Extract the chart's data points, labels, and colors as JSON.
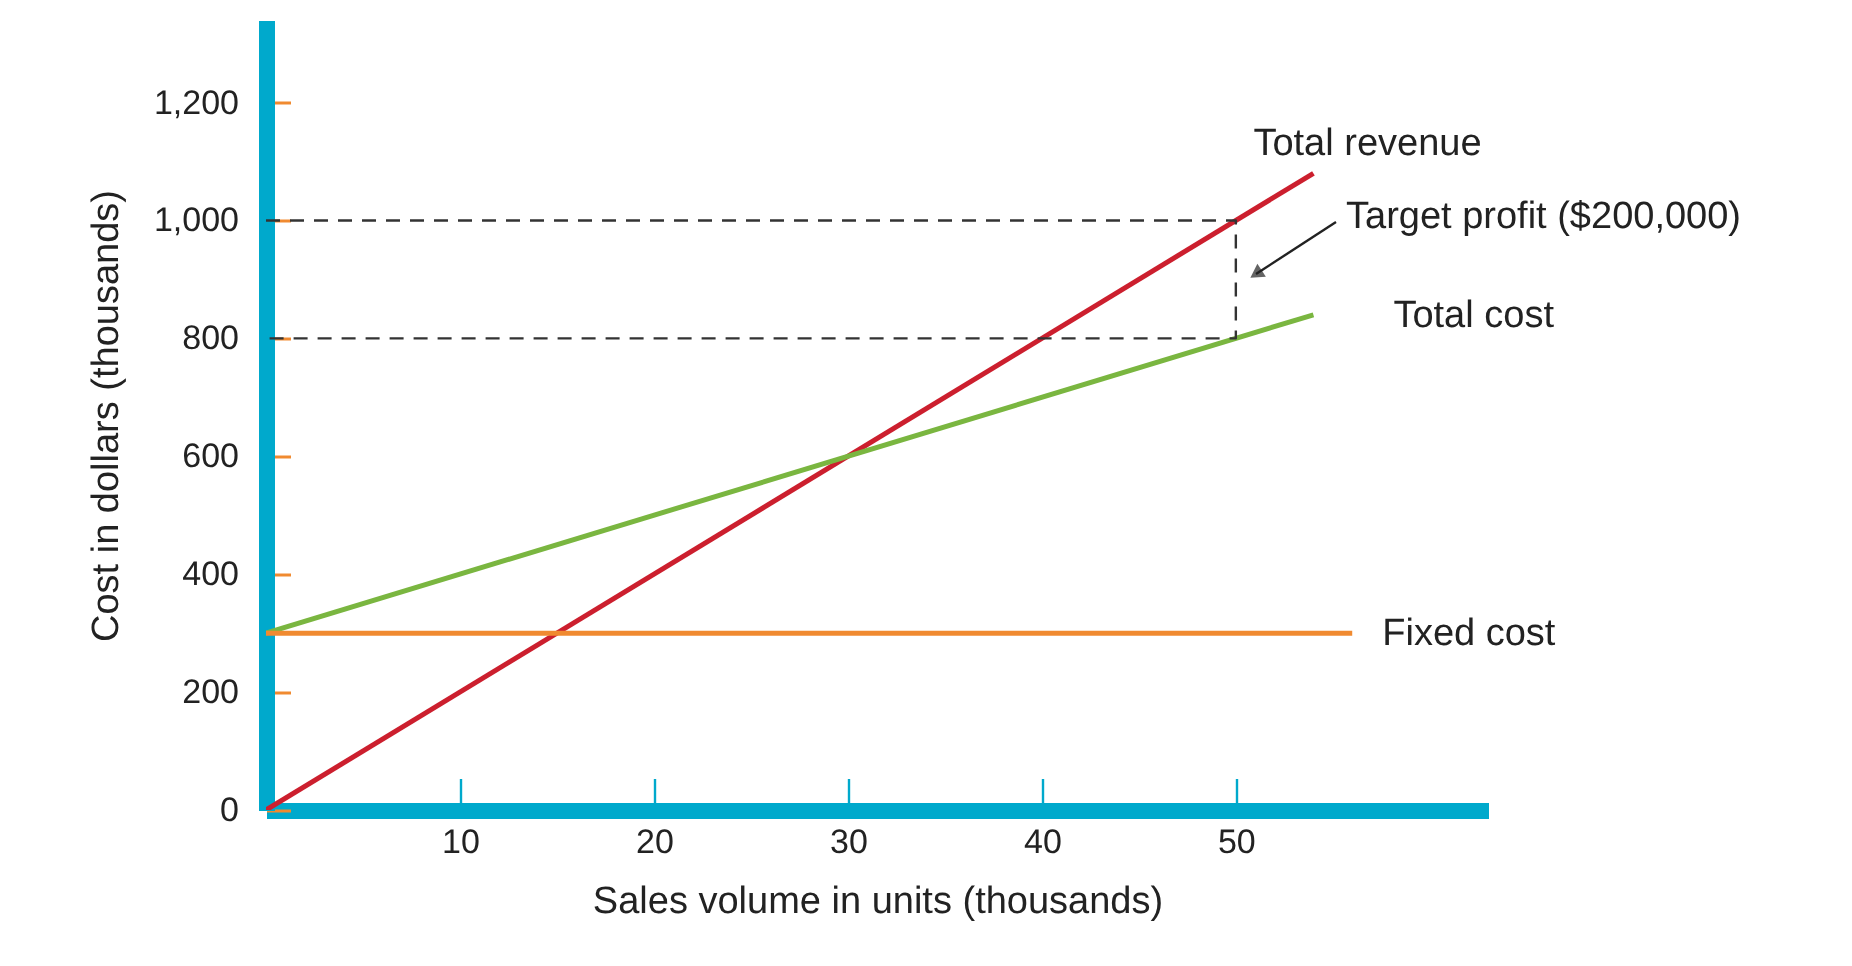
{
  "chart_data": {
    "type": "line",
    "xlabel": "Sales volume in units (thousands)",
    "ylabel": "Cost in dollars (thousands)",
    "xlim": [
      0,
      63
    ],
    "xticks": [
      10,
      20,
      30,
      40,
      50
    ],
    "ylim": [
      0,
      1340
    ],
    "yticks": [
      0,
      200,
      400,
      600,
      800,
      {
        "value": 1000,
        "label": "1,000"
      },
      {
        "value": 1200,
        "label": "1,200"
      }
    ],
    "series": [
      {
        "name": "Total revenue",
        "color": "#cc1f2e",
        "x": [
          0,
          54
        ],
        "values": [
          0,
          1080
        ]
      },
      {
        "name": "Total cost",
        "color": "#7ab640",
        "x": [
          0,
          54
        ],
        "values": [
          300,
          840
        ]
      },
      {
        "name": "Fixed cost",
        "color": "#f08a30",
        "x": [
          0,
          56
        ],
        "values": [
          300,
          300
        ]
      },
      {
        "color": "#333333",
        "line_style": "dashed",
        "x": [
          0,
          50,
          50,
          0
        ],
        "values": [
          1000,
          1000,
          800,
          800
        ]
      }
    ],
    "annotations": [
      "Target profit ($200,000)"
    ]
  }
}
